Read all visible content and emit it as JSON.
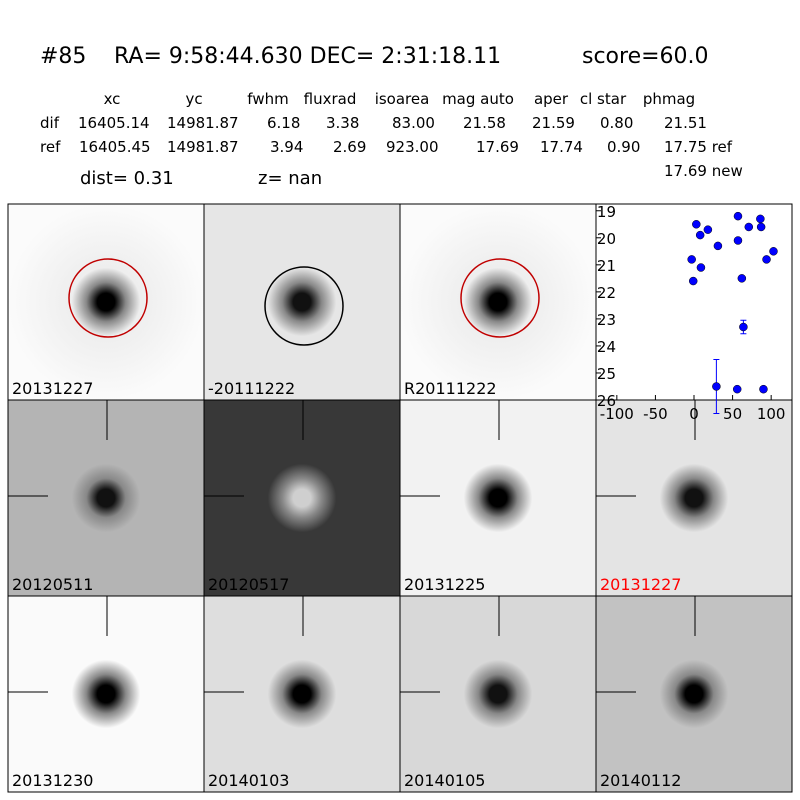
{
  "header": {
    "id": "#85",
    "coords": "RA= 9:58:44.630 DEC= 2:31:18.11",
    "score": "score=60.0"
  },
  "table": {
    "columns": [
      "xc",
      "yc",
      "fwhm",
      "fluxrad",
      "isoarea",
      "mag auto",
      "aper",
      "cl star",
      "phmag"
    ],
    "rows": [
      [
        "dif",
        "16405.14",
        "14981.87",
        "6.18",
        "3.38",
        "83.00",
        "21.58",
        "21.59",
        "0.80",
        "21.51"
      ],
      [
        "ref",
        "16405.45",
        "14981.87",
        "3.94",
        "2.69",
        "923.00",
        "17.69",
        "17.74",
        "0.90",
        "17.75 ref"
      ]
    ],
    "extra": "17.69 new"
  },
  "dist": "dist=  0.31",
  "z": "z=   nan",
  "stamps": [
    "20131227",
    "-20111222",
    "R20111222",
    "20120511",
    "20120517",
    "20131225",
    "20131227",
    "20131230",
    "20140103",
    "20140105",
    "20140112"
  ],
  "chart_data": {
    "type": "scatter",
    "color": "#0000ff",
    "x": [
      -3,
      -1,
      3,
      8,
      9,
      18,
      31,
      29,
      56,
      57,
      57,
      62,
      64,
      71,
      86,
      87,
      90,
      94,
      103
    ],
    "values": [
      20.8,
      21.6,
      19.5,
      19.9,
      21.1,
      19.7,
      20.3,
      25.5,
      25.6,
      19.2,
      20.1,
      21.5,
      23.3,
      19.6,
      19.3,
      19.6,
      25.6,
      20.8,
      20.5
    ],
    "errors": [
      null,
      null,
      null,
      null,
      null,
      null,
      null,
      1.0,
      null,
      null,
      null,
      null,
      0.25,
      null,
      null,
      null,
      0.1,
      null,
      null
    ],
    "xlim": [
      -127,
      127
    ],
    "ylim": [
      26,
      18.75
    ],
    "xticks": [
      -100,
      -50,
      0,
      50,
      100
    ],
    "yticks": [
      19,
      20,
      21,
      22,
      23,
      24,
      25,
      26
    ]
  }
}
